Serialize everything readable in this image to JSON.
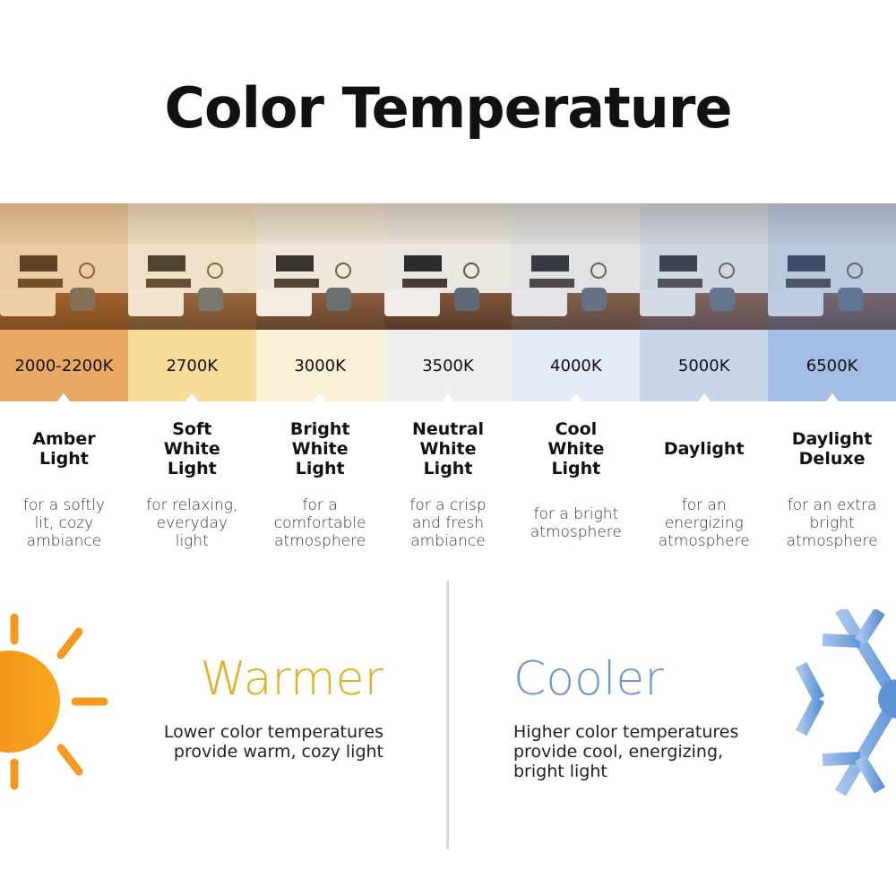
{
  "title": "Color Temperature",
  "temperatures": [
    {
      "kelvin": "2000-2200K",
      "name": "Amber Light",
      "description": "for a softly lit, cozy ambiance",
      "color": "#eaa862",
      "tint": "rgba(230,140,50,0.35)"
    },
    {
      "kelvin": "2700K",
      "name": "Soft White Light",
      "description": "for relaxing, everyday light",
      "color": "#f9dc9c",
      "tint": "rgba(240,190,110,0.25)"
    },
    {
      "kelvin": "3000K",
      "name": "Bright White Light",
      "description": "for a comfortable atmosphere",
      "color": "#faf0d6",
      "tint": "rgba(240,210,160,0.15)"
    },
    {
      "kelvin": "3500K",
      "name": "Neutral White Light",
      "description": "for a crisp and fresh ambiance",
      "color": "#efefef",
      "tint": "rgba(200,200,205,0.1)"
    },
    {
      "kelvin": "4000K",
      "name": "Cool White Light",
      "description": "for a bright atmosphere",
      "color": "#e4eaf6",
      "tint": "rgba(170,190,225,0.2)"
    },
    {
      "kelvin": "5000K",
      "name": "Daylight",
      "description": "for an energizing atmosphere",
      "color": "#c9d6ea",
      "tint": "rgba(140,170,220,0.3)"
    },
    {
      "kelvin": "6500K",
      "name": "Daylight Deluxe",
      "description": "for an extra bright atmosphere",
      "color": "#a3bde3",
      "tint": "rgba(110,150,215,0.4)"
    }
  ],
  "warmer": {
    "heading": "Warmer",
    "text": "Lower color temperatures provide warm, cozy light",
    "color": "#e5ad1f",
    "icon": "sun-icon"
  },
  "cooler": {
    "heading": "Cooler",
    "text": "Higher color temperatures provide cool, energizing, bright light",
    "color": "#6d9ad3",
    "icon": "snowflake-icon"
  }
}
